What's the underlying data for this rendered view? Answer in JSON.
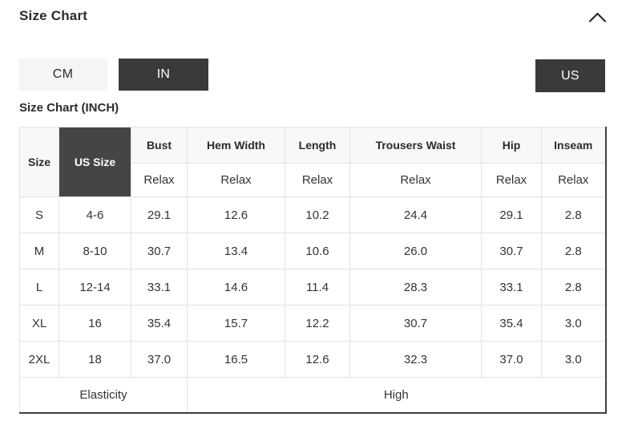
{
  "header": {
    "title": "Size Chart",
    "collapse_icon": "chevron-up"
  },
  "unit_toggle": {
    "cm_label": "CM",
    "in_label": "IN",
    "selected_unit": "IN"
  },
  "region_toggle": {
    "us_label": "US",
    "selected_region": "US"
  },
  "subtitle": "Size Chart (INCH)",
  "table": {
    "col_headers": [
      "Size",
      "US Size",
      "Bust",
      "Hem Width",
      "Length",
      "Trousers Waist",
      "Hip",
      "Inseam"
    ],
    "fit_row": [
      "Relax",
      "Relax",
      "Relax",
      "Relax",
      "Relax",
      "Relax"
    ],
    "rows": [
      {
        "size": "S",
        "us_size": "4-6",
        "values": [
          "29.1",
          "12.6",
          "10.2",
          "24.4",
          "29.1",
          "2.8"
        ]
      },
      {
        "size": "M",
        "us_size": "8-10",
        "values": [
          "30.7",
          "13.4",
          "10.6",
          "26.0",
          "30.7",
          "2.8"
        ]
      },
      {
        "size": "L",
        "us_size": "12-14",
        "values": [
          "33.1",
          "14.6",
          "11.4",
          "28.3",
          "33.1",
          "2.8"
        ]
      },
      {
        "size": "XL",
        "us_size": "16",
        "values": [
          "35.4",
          "15.7",
          "12.2",
          "30.7",
          "35.4",
          "3.0"
        ]
      },
      {
        "size": "2XL",
        "us_size": "18",
        "values": [
          "37.0",
          "16.5",
          "12.6",
          "32.3",
          "37.0",
          "3.0"
        ]
      }
    ],
    "footer": {
      "label": "Elasticity",
      "value": "High"
    }
  },
  "colors": {
    "accent_dark": "#3a3a3a",
    "us_size_header_bg": "#454545",
    "light_button_bg": "#f5f5f5",
    "header_cell_bg": "#f8f8f8",
    "grid_border": "#e2e2e2",
    "outer_dark_border": "#3f3f3f",
    "text": "#2b2b2b"
  }
}
